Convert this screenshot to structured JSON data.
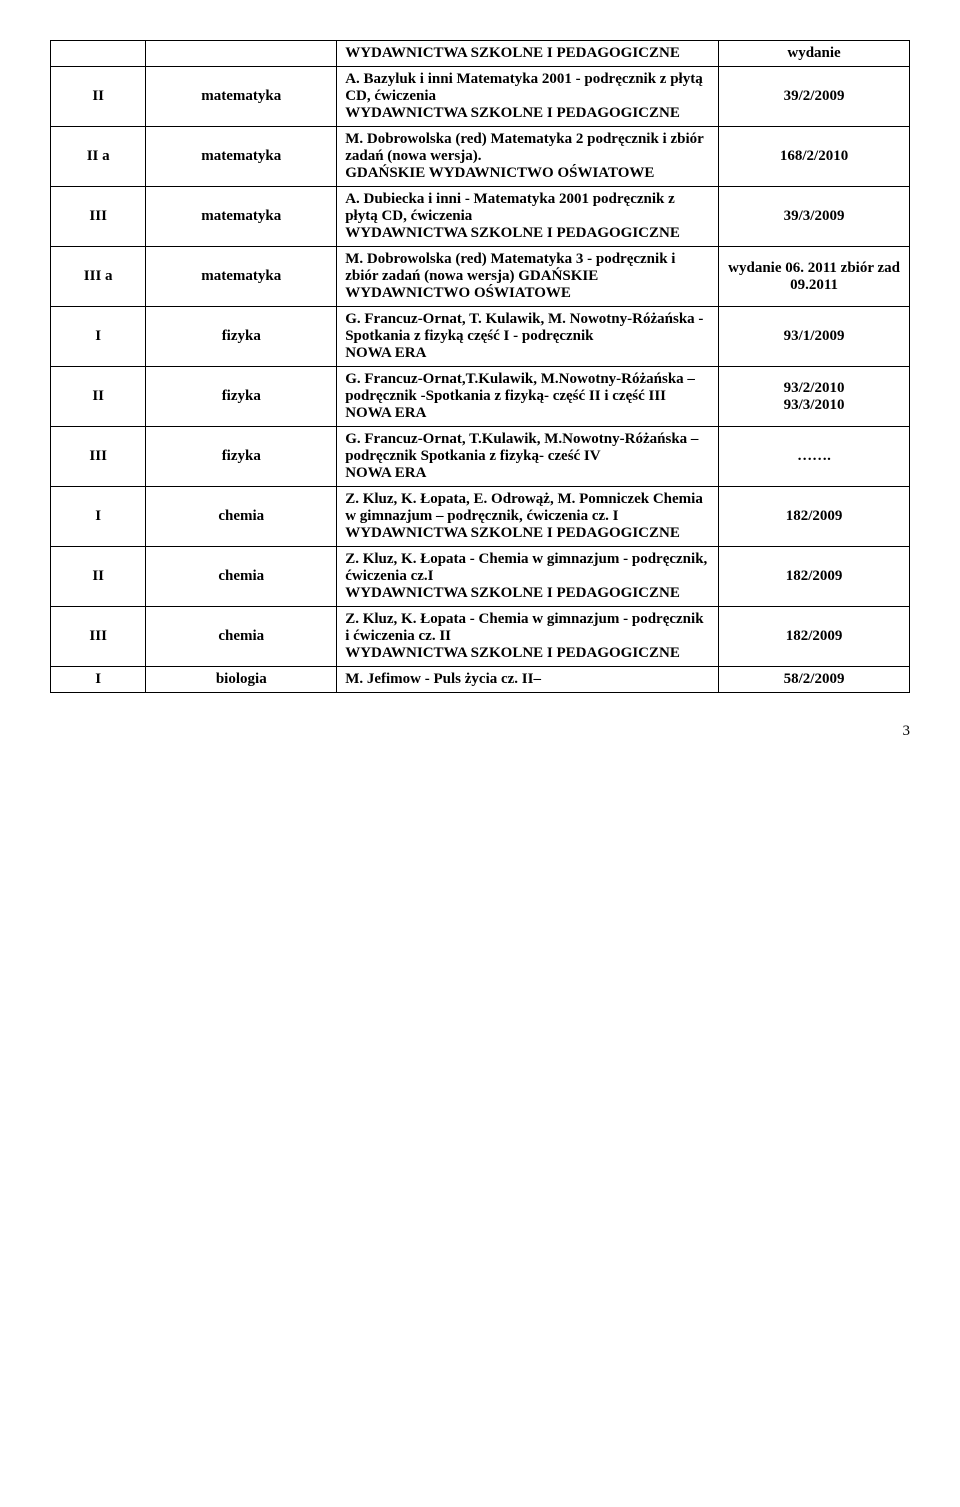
{
  "table": {
    "rows": [
      {
        "c1": "",
        "c2": "",
        "c3": "WYDAWNICTWA SZKOLNE I PEDAGOGICZNE",
        "c4": "wydanie"
      },
      {
        "c1": "II",
        "c2": "matematyka",
        "c3": "A. Bazyluk i inni Matematyka 2001 - podręcznik z płytą CD, ćwiczenia\nWYDAWNICTWA SZKOLNE I PEDAGOGICZNE",
        "c4": "39/2/2009"
      },
      {
        "c1": "II a",
        "c2": "matematyka",
        "c3": "M. Dobrowolska (red) Matematyka 2 podręcznik i zbiór zadań (nowa wersja).\nGDAŃSKIE WYDAWNICTWO OŚWIATOWE",
        "c4": "168/2/2010"
      },
      {
        "c1": "III",
        "c2": "matematyka",
        "c3": "A. Dubiecka i inni - Matematyka 2001 podręcznik z płytą CD, ćwiczenia\nWYDAWNICTWA SZKOLNE I PEDAGOGICZNE",
        "c4": "39/3/2009"
      },
      {
        "c1": "III a",
        "c2": "matematyka",
        "c3": "M. Dobrowolska (red) Matematyka 3 - podręcznik i zbiór zadań (nowa wersja) GDAŃSKIE WYDAWNICTWO OŚWIATOWE",
        "c4": "wydanie 06. 2011 zbiór zad 09.2011"
      },
      {
        "c1": "I",
        "c2": "fizyka",
        "c3": "G. Francuz-Ornat, T. Kulawik, M. Nowotny-Różańska - Spotkania z fizyką część I - podręcznik\nNOWA ERA",
        "c4": "93/1/2009"
      },
      {
        "c1": "II",
        "c2": "fizyka",
        "c3": "G. Francuz-Ornat,T.Kulawik, M.Nowotny-Różańska – podręcznik -Spotkania z fizyką- część II i część III\n NOWA ERA",
        "c4": "93/2/2010\n93/3/2010"
      },
      {
        "c1": "III",
        "c2": "fizyka",
        "c3": "G. Francuz-Ornat, T.Kulawik, M.Nowotny-Różańska – podręcznik Spotkania z fizyką- cześć IV\nNOWA ERA",
        "c4": "……."
      },
      {
        "c1": "I",
        "c2": "chemia",
        "c3": "Z. Kluz, K. Łopata, E. Odrowąż, M. Pomniczek Chemia w gimnazjum – podręcznik, ćwiczenia cz. I\nWYDAWNICTWA SZKOLNE I PEDAGOGICZNE",
        "c4": "182/2009"
      },
      {
        "c1": "II",
        "c2": "chemia",
        "c3": "Z. Kluz, K. Łopata - Chemia w gimnazjum - podręcznik, ćwiczenia cz.I\nWYDAWNICTWA SZKOLNE I PEDAGOGICZNE",
        "c4": "182/2009"
      },
      {
        "c1": "III",
        "c2": "chemia",
        "c3": "Z. Kluz, K. Łopata - Chemia w gimnazjum - podręcznik i ćwiczenia cz. II\nWYDAWNICTWA SZKOLNE I PEDAGOGICZNE",
        "c4": "182/2009"
      },
      {
        "c1": "I",
        "c2": "biologia",
        "c3": "M. Jefimow - Puls życia cz. II–",
        "c4": "58/2/2009"
      }
    ]
  },
  "pagenum": "3"
}
